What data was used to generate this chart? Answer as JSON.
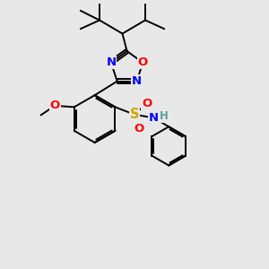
{
  "background_color": "#e8e8e8",
  "bond_color": "#000000",
  "atom_colors": {
    "N": "#0000ff",
    "O": "#ff0000",
    "S": "#ccaa00",
    "H": "#5fa0a0",
    "C": "#000000"
  },
  "font_size_atom": 8.5,
  "figsize": [
    3.0,
    3.0
  ],
  "dpi": 100
}
